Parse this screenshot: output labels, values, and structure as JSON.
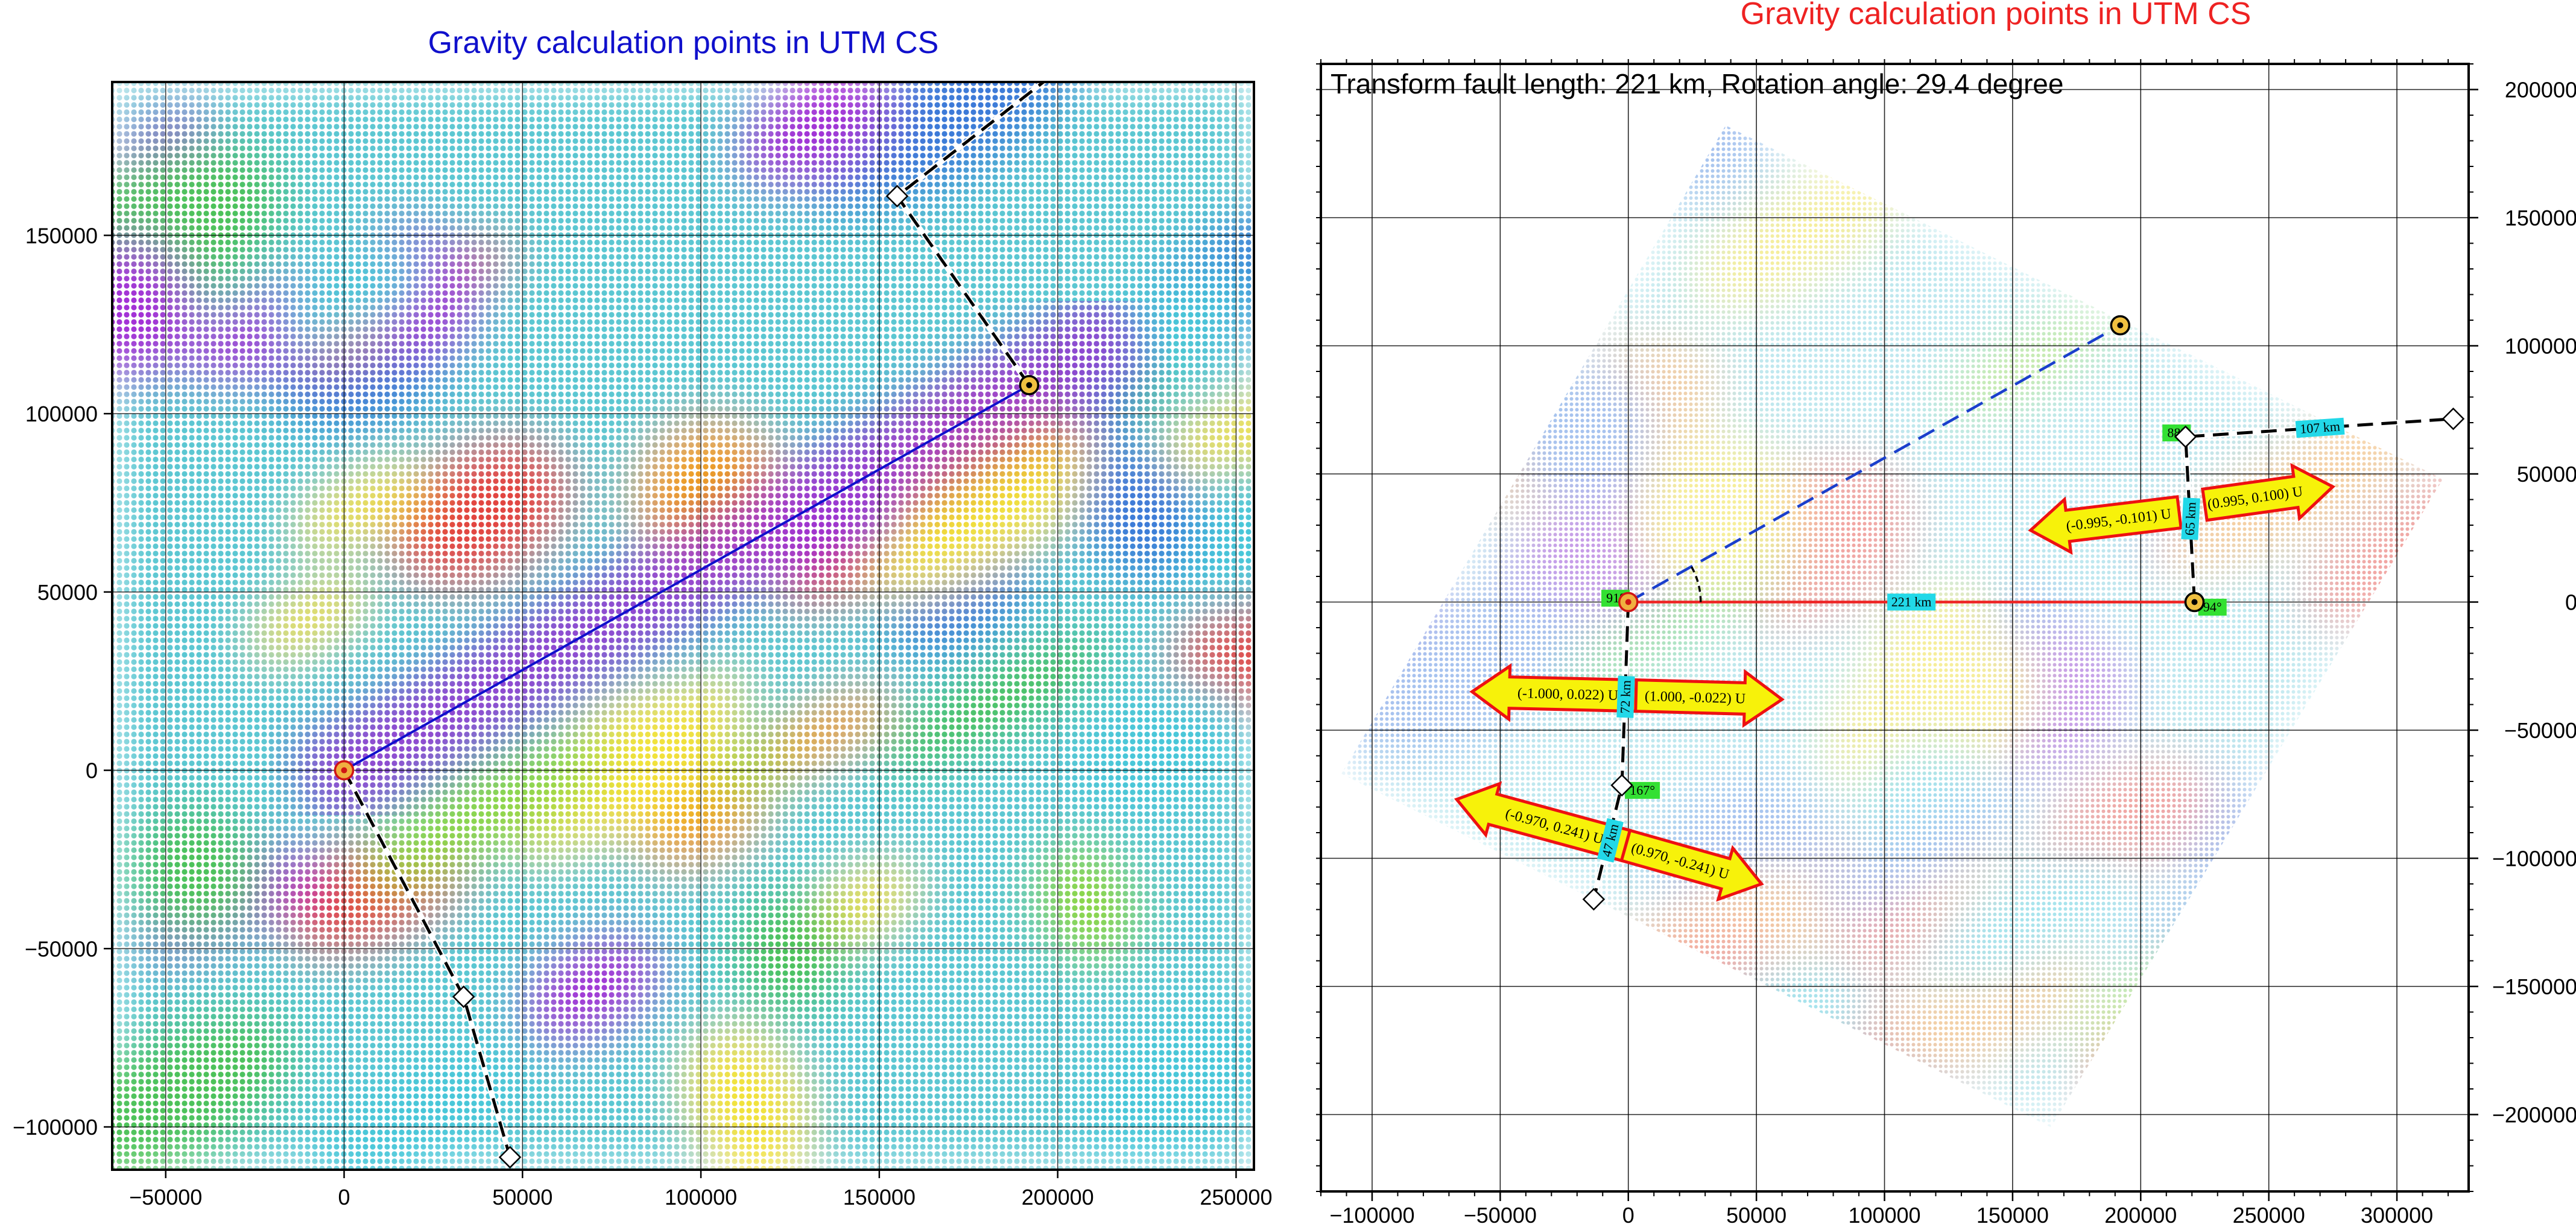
{
  "chart_data": [
    {
      "type": "scatter",
      "title": "Gravity calculation points in UTM CS",
      "title_color": "#1010cc",
      "xlim": [
        -65000,
        255000
      ],
      "ylim": [
        -112000,
        193000
      ],
      "xticks": [
        -50000,
        0,
        50000,
        100000,
        150000,
        200000,
        250000
      ],
      "yticks": [
        -100000,
        -50000,
        0,
        50000,
        100000,
        150000
      ],
      "xtick_labels": [
        "−50000",
        "0",
        "50000",
        "100000",
        "150000",
        "200000",
        "250000"
      ],
      "ytick_labels": [
        "−100000",
        "−50000",
        "0",
        "50000",
        "100000",
        "150000"
      ],
      "grid": true,
      "background": "dense colored dot grid (gravity anomaly)",
      "transform_fault": {
        "from": [
          0,
          0
        ],
        "to": [
          192000,
          108000
        ],
        "color": "#1010cc"
      },
      "ridge_segments": [
        {
          "points": [
            [
              0,
              0
            ],
            [
              33500,
              -63500
            ],
            [
              46500,
              -108500
            ]
          ],
          "style": "dashed"
        },
        {
          "points": [
            [
              192000,
              108000
            ],
            [
              155000,
              161000
            ],
            [
              205000,
              200000
            ]
          ],
          "style": "dashed"
        }
      ],
      "markers": [
        {
          "kind": "circle-red",
          "x": 0,
          "y": 0
        },
        {
          "kind": "circle-black",
          "x": 192000,
          "y": 108000
        },
        {
          "kind": "diamond",
          "x": 33500,
          "y": -63500
        },
        {
          "kind": "diamond",
          "x": 46500,
          "y": -108500
        },
        {
          "kind": "diamond",
          "x": 155000,
          "y": 161000
        }
      ]
    },
    {
      "type": "scatter",
      "title": "Gravity calculation points in UTM CS",
      "title_color": "#ee2222",
      "info_text": "Transform fault length: 221 km,  Rotation angle: 29.4 degree",
      "xlim": [
        -120000,
        328000
      ],
      "ylim": [
        -230000,
        210000
      ],
      "xticks": [
        -100000,
        -50000,
        0,
        50000,
        100000,
        150000,
        200000,
        250000,
        300000
      ],
      "yticks": [
        -200000,
        -150000,
        -100000,
        -50000,
        0,
        50000,
        100000,
        150000,
        200000
      ],
      "xtick_labels": [
        "−100000",
        "−50000",
        "0",
        "50000",
        "100000",
        "150000",
        "200000",
        "250000",
        "300000"
      ],
      "ytick_labels": [
        "−200000",
        "−150000",
        "−100000",
        "−50000",
        "0",
        "50000",
        "100000",
        "150000",
        "200000"
      ],
      "grid": true,
      "background": "rotated faded colored dot grid",
      "rotated_grid_corners": [
        [
          -112000,
          -67000
        ],
        [
          165000,
          -205000
        ],
        [
          318000,
          48000
        ],
        [
          38000,
          186000
        ]
      ],
      "transform_fault": {
        "from": [
          0,
          0
        ],
        "to": [
          221000,
          0
        ],
        "color": "#ee2222",
        "label": "221 km"
      },
      "original_fault": {
        "from": [
          0,
          0
        ],
        "to": [
          192000,
          108000
        ],
        "color": "#1a3fcc",
        "style": "dashed"
      },
      "ridge_segments": [
        {
          "points": [
            [
              0,
              0
            ],
            [
              -2500,
              -71500
            ],
            [
              -13500,
              -116000
            ]
          ],
          "style": "dashed"
        },
        {
          "points": [
            [
              221000,
              0
            ],
            [
              217500,
              64500
            ],
            [
              322000,
              71500
            ]
          ],
          "style": "dashed"
        }
      ],
      "segment_labels": [
        {
          "text": "72 km",
          "x": -1000,
          "y": -37000,
          "angle": -88
        },
        {
          "text": "47 km",
          "x": -7000,
          "y": -93000,
          "angle": -76
        },
        {
          "text": "65 km",
          "x": 219500,
          "y": 32500,
          "angle": -87
        },
        {
          "text": "107 km",
          "x": 270000,
          "y": 68000,
          "angle": -4
        }
      ],
      "angle_labels": [
        {
          "text": "91°",
          "x": -5000,
          "y": 1500
        },
        {
          "text": "94°",
          "x": 228000,
          "y": -2000
        },
        {
          "text": "88°",
          "x": 214000,
          "y": 66000
        },
        {
          "text": "167°",
          "x": 5500,
          "y": -73500
        }
      ],
      "markers": [
        {
          "kind": "circle-red",
          "x": 0,
          "y": 0
        },
        {
          "kind": "circle-black",
          "x": 221000,
          "y": 0
        },
        {
          "kind": "circle-black",
          "x": 192000,
          "y": 108000
        },
        {
          "kind": "diamond",
          "x": -2500,
          "y": -71500
        },
        {
          "kind": "diamond",
          "x": -13500,
          "y": -116000
        },
        {
          "kind": "diamond",
          "x": 217500,
          "y": 64500
        },
        {
          "kind": "diamond",
          "x": 322000,
          "y": 71500
        }
      ],
      "velocity_arrows": [
        {
          "text": "(-1.000, 0.022) U",
          "x1": 3000,
          "y1": -36500,
          "x2": -61000,
          "y2": -35000
        },
        {
          "text": "(1.000, -0.022) U",
          "x1": 3000,
          "y1": -36500,
          "x2": 60000,
          "y2": -38000
        },
        {
          "text": "(-0.970, 0.241) U",
          "x1": -1000,
          "y1": -95000,
          "x2": -67000,
          "y2": -77000
        },
        {
          "text": "(0.970, -0.241) U",
          "x1": -1000,
          "y1": -95000,
          "x2": 52000,
          "y2": -110000
        },
        {
          "text": "(-0.995, -0.101) U",
          "x1": 215000,
          "y1": 35000,
          "x2": 157000,
          "y2": 28000
        },
        {
          "text": "(0.995, 0.100) U",
          "x1": 225000,
          "y1": 38000,
          "x2": 275000,
          "y2": 45000
        }
      ]
    }
  ]
}
